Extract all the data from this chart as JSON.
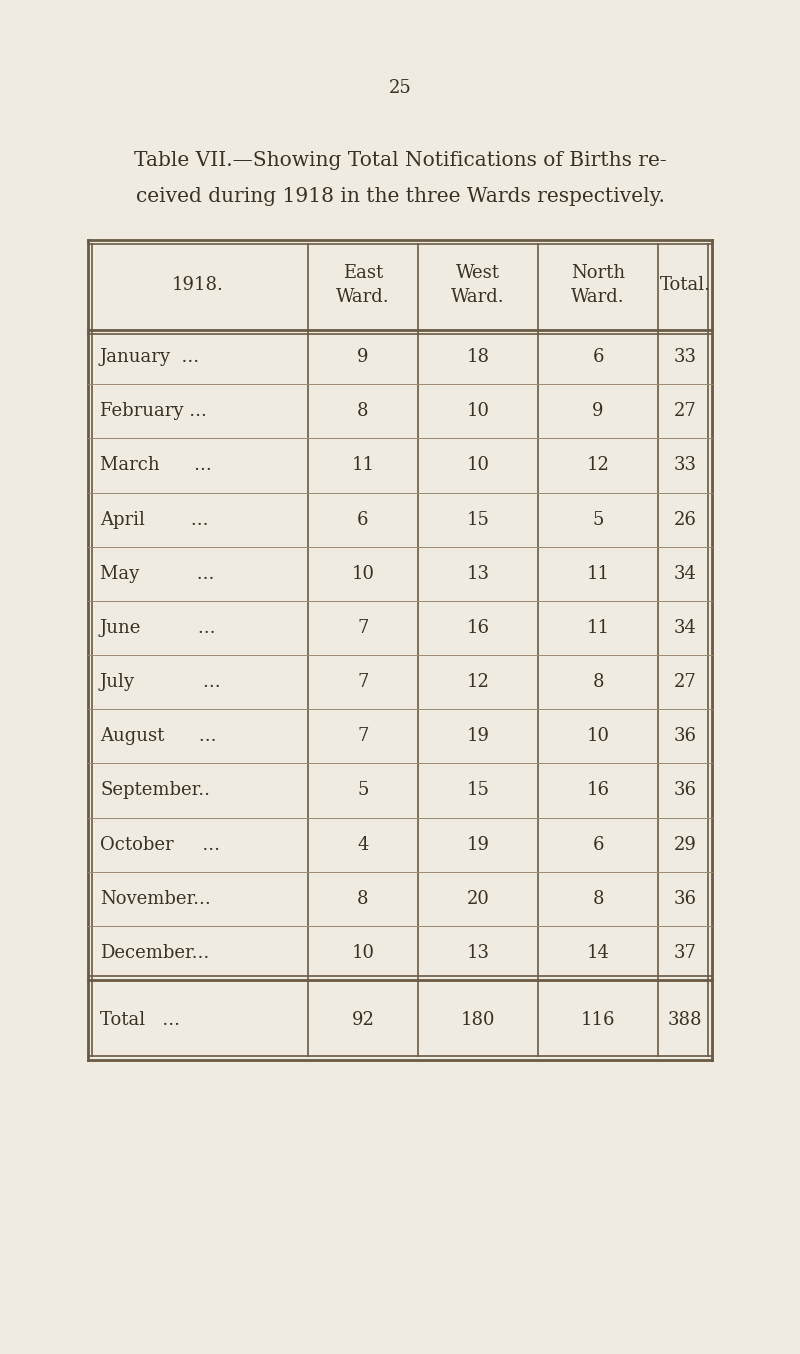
{
  "page_number": "25",
  "title_line1": "Table VII.—Showing Total Notifications of Births re-",
  "title_line2": "ceived during 1918 in the three Wards respectively.",
  "background_color": "#f0ebe0",
  "text_color": "#3a3025",
  "col_headers": [
    "1918.",
    "East\nWard.",
    "West\nWard.",
    "North\nWard.",
    "Total."
  ],
  "months": [
    "January  ...",
    "February ...",
    "March      ...",
    "April        ...",
    "May          ...",
    "June          ...",
    "July            ...",
    "August      ...",
    "September..",
    "October     ...",
    "November...",
    "December..."
  ],
  "east_ward": [
    9,
    8,
    11,
    6,
    10,
    7,
    7,
    7,
    5,
    4,
    8,
    10
  ],
  "west_ward": [
    18,
    10,
    10,
    15,
    13,
    16,
    12,
    19,
    15,
    19,
    20,
    13
  ],
  "north_ward": [
    6,
    9,
    12,
    5,
    11,
    11,
    8,
    10,
    16,
    6,
    8,
    14
  ],
  "totals": [
    33,
    27,
    33,
    26,
    34,
    34,
    27,
    36,
    36,
    29,
    36,
    37
  ],
  "grand_total_label": "Total   ...",
  "grand_east": 92,
  "grand_west": 180,
  "grand_north": 116,
  "grand_total": 388,
  "title_fontsize": 14.5,
  "header_fontsize": 13,
  "body_fontsize": 13,
  "page_num_fontsize": 13,
  "line_color": "#6a5a45"
}
